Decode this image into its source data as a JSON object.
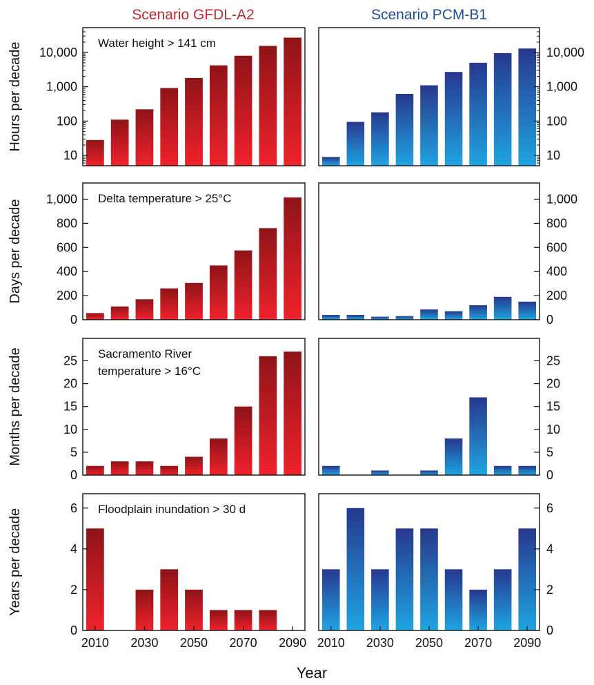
{
  "column_titles": {
    "left": "Scenario GFDL-A2",
    "right": "Scenario PCM-B1"
  },
  "colors": {
    "left_title": "#c1272d",
    "right_title": "#1f4e9c",
    "red_top": "#8e1418",
    "red_bottom": "#f0222b",
    "blue_top": "#27388e",
    "blue_bottom": "#1fa4e2"
  },
  "x_axis_title": "Year",
  "chart_data": [
    {
      "type": "bar",
      "row": 0,
      "scenario": "GFDL-A2",
      "annotation": [
        "Water height > 141 cm"
      ],
      "ylabel": "Hours per decade",
      "scale": "log",
      "ylim": [
        5,
        40000
      ],
      "yticks": [
        10,
        100,
        1000,
        10000
      ],
      "ytick_labels": [
        "10",
        "100",
        "1,000",
        "10,000"
      ],
      "categories": [
        2010,
        2020,
        2030,
        2040,
        2050,
        2060,
        2070,
        2080,
        2090
      ],
      "values": [
        28,
        110,
        220,
        920,
        1800,
        4200,
        8000,
        15500,
        27000
      ]
    },
    {
      "type": "bar",
      "row": 0,
      "scenario": "PCM-B1",
      "annotation": [],
      "ylabel": "",
      "scale": "log",
      "ylim": [
        5,
        40000
      ],
      "yticks": [
        10,
        100,
        1000,
        10000
      ],
      "ytick_labels": [
        "10",
        "100",
        "1,000",
        "10,000"
      ],
      "categories": [
        2010,
        2020,
        2030,
        2040,
        2050,
        2060,
        2070,
        2080,
        2090
      ],
      "values": [
        9,
        95,
        180,
        620,
        1100,
        2700,
        5000,
        9500,
        13000
      ]
    },
    {
      "type": "bar",
      "row": 1,
      "scenario": "GFDL-A2",
      "annotation": [
        "Delta temperature > 25°C"
      ],
      "ylabel": "Days per decade",
      "scale": "linear",
      "ylim": [
        0,
        1100
      ],
      "yticks": [
        0,
        200,
        400,
        600,
        800,
        1000
      ],
      "ytick_labels": [
        "0",
        "200",
        "400",
        "600",
        "800",
        "1,000"
      ],
      "categories": [
        2010,
        2020,
        2030,
        2040,
        2050,
        2060,
        2070,
        2080,
        2090
      ],
      "values": [
        55,
        110,
        170,
        260,
        305,
        450,
        575,
        760,
        1015
      ]
    },
    {
      "type": "bar",
      "row": 1,
      "scenario": "PCM-B1",
      "annotation": [],
      "ylabel": "",
      "scale": "linear",
      "ylim": [
        0,
        1100
      ],
      "yticks": [
        0,
        200,
        400,
        600,
        800,
        1000
      ],
      "ytick_labels": [
        "0",
        "200",
        "400",
        "600",
        "800",
        "1,000"
      ],
      "categories": [
        2010,
        2020,
        2030,
        2040,
        2050,
        2060,
        2070,
        2080,
        2090
      ],
      "values": [
        40,
        40,
        25,
        30,
        85,
        70,
        120,
        190,
        150
      ]
    },
    {
      "type": "bar",
      "row": 2,
      "scenario": "GFDL-A2",
      "annotation": [
        "Sacramento River",
        "temperature > 16°C"
      ],
      "ylabel": "Months per decade",
      "scale": "linear",
      "ylim": [
        0,
        29
      ],
      "yticks": [
        0,
        5,
        10,
        15,
        20,
        25
      ],
      "ytick_labels": [
        "0",
        "5",
        "10",
        "15",
        "20",
        "25"
      ],
      "categories": [
        2010,
        2020,
        2030,
        2040,
        2050,
        2060,
        2070,
        2080,
        2090
      ],
      "values": [
        2,
        3,
        3,
        2,
        4,
        8,
        15,
        26,
        27
      ]
    },
    {
      "type": "bar",
      "row": 2,
      "scenario": "PCM-B1",
      "annotation": [],
      "ylabel": "",
      "scale": "linear",
      "ylim": [
        0,
        29
      ],
      "yticks": [
        0,
        5,
        10,
        15,
        20,
        25
      ],
      "ytick_labels": [
        "0",
        "5",
        "10",
        "15",
        "20",
        "25"
      ],
      "categories": [
        2010,
        2020,
        2030,
        2040,
        2050,
        2060,
        2070,
        2080,
        2090
      ],
      "values": [
        2,
        0,
        1,
        0,
        1,
        8,
        17,
        2,
        2
      ]
    },
    {
      "type": "bar",
      "row": 3,
      "scenario": "GFDL-A2",
      "annotation": [
        "Floodplain inundation > 30 d"
      ],
      "ylabel": "Years per decade",
      "scale": "linear",
      "ylim": [
        0,
        6.5
      ],
      "yticks": [
        0,
        2,
        4,
        6
      ],
      "ytick_labels": [
        "0",
        "2",
        "4",
        "6"
      ],
      "categories": [
        2010,
        2020,
        2030,
        2040,
        2050,
        2060,
        2070,
        2080,
        2090
      ],
      "values": [
        5,
        0,
        2,
        3,
        2,
        1,
        1,
        1,
        0
      ],
      "xtick_labels": [
        "2010",
        "2030",
        "2050",
        "2070",
        "2090"
      ]
    },
    {
      "type": "bar",
      "row": 3,
      "scenario": "PCM-B1",
      "annotation": [],
      "ylabel": "",
      "scale": "linear",
      "ylim": [
        0,
        6.5
      ],
      "yticks": [
        0,
        2,
        4,
        6
      ],
      "ytick_labels": [
        "0",
        "2",
        "4",
        "6"
      ],
      "categories": [
        2010,
        2020,
        2030,
        2040,
        2050,
        2060,
        2070,
        2080,
        2090
      ],
      "values": [
        3,
        6,
        3,
        5,
        5,
        3,
        2,
        3,
        5
      ],
      "xtick_labels": [
        "2010",
        "2030",
        "2050",
        "2070",
        "2090"
      ]
    }
  ]
}
